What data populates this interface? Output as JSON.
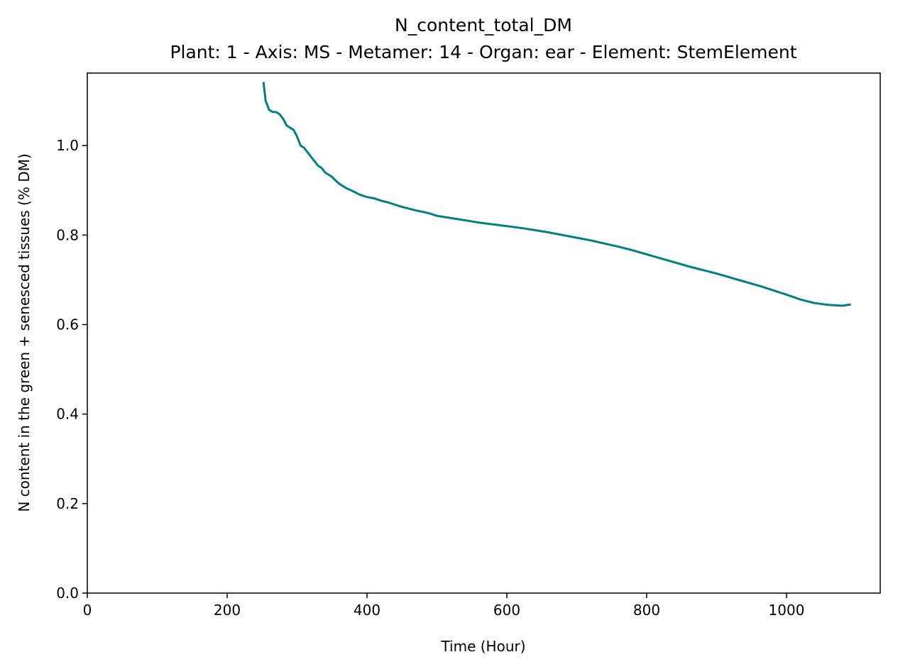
{
  "chart_data": {
    "type": "line",
    "title": "N_content_total_DM",
    "subtitle": "Plant: 1 - Axis: MS - Metamer: 14 - Organ: ear - Element: StemElement",
    "xlabel": "Time (Hour)",
    "ylabel": "N content in the green + senesced tissues (% DM)",
    "xlim": [
      0,
      1134
    ],
    "ylim": [
      0,
      1.162
    ],
    "xticks": [
      0,
      200,
      400,
      600,
      800,
      1000
    ],
    "yticks": [
      0.0,
      0.2,
      0.4,
      0.6,
      0.8,
      1.0
    ],
    "xtick_labels": [
      "0",
      "200",
      "400",
      "600",
      "800",
      "1000"
    ],
    "ytick_labels": [
      "0.0",
      "0.2",
      "0.4",
      "0.6",
      "0.8",
      "1.0"
    ],
    "grid": false,
    "series": [
      {
        "color": "#008080",
        "x": [
          252,
          255,
          260,
          265,
          270,
          275,
          280,
          285,
          290,
          295,
          300,
          305,
          310,
          315,
          320,
          325,
          330,
          335,
          340,
          345,
          350,
          355,
          360,
          370,
          380,
          390,
          400,
          410,
          420,
          430,
          440,
          450,
          460,
          470,
          480,
          490,
          500,
          520,
          540,
          560,
          580,
          600,
          620,
          640,
          660,
          680,
          700,
          720,
          740,
          760,
          780,
          800,
          820,
          840,
          860,
          880,
          900,
          920,
          940,
          960,
          980,
          1000,
          1020,
          1040,
          1060,
          1070,
          1080,
          1092
        ],
        "y": [
          1.142,
          1.1,
          1.08,
          1.075,
          1.075,
          1.07,
          1.06,
          1.045,
          1.04,
          1.035,
          1.02,
          1.0,
          0.995,
          0.985,
          0.975,
          0.965,
          0.955,
          0.95,
          0.94,
          0.935,
          0.93,
          0.922,
          0.915,
          0.905,
          0.898,
          0.89,
          0.885,
          0.882,
          0.877,
          0.873,
          0.868,
          0.863,
          0.859,
          0.855,
          0.852,
          0.848,
          0.843,
          0.838,
          0.833,
          0.828,
          0.824,
          0.82,
          0.816,
          0.811,
          0.806,
          0.8,
          0.794,
          0.788,
          0.781,
          0.774,
          0.766,
          0.757,
          0.748,
          0.739,
          0.73,
          0.722,
          0.714,
          0.705,
          0.696,
          0.687,
          0.677,
          0.667,
          0.656,
          0.648,
          0.644,
          0.643,
          0.642,
          0.645
        ]
      }
    ]
  }
}
